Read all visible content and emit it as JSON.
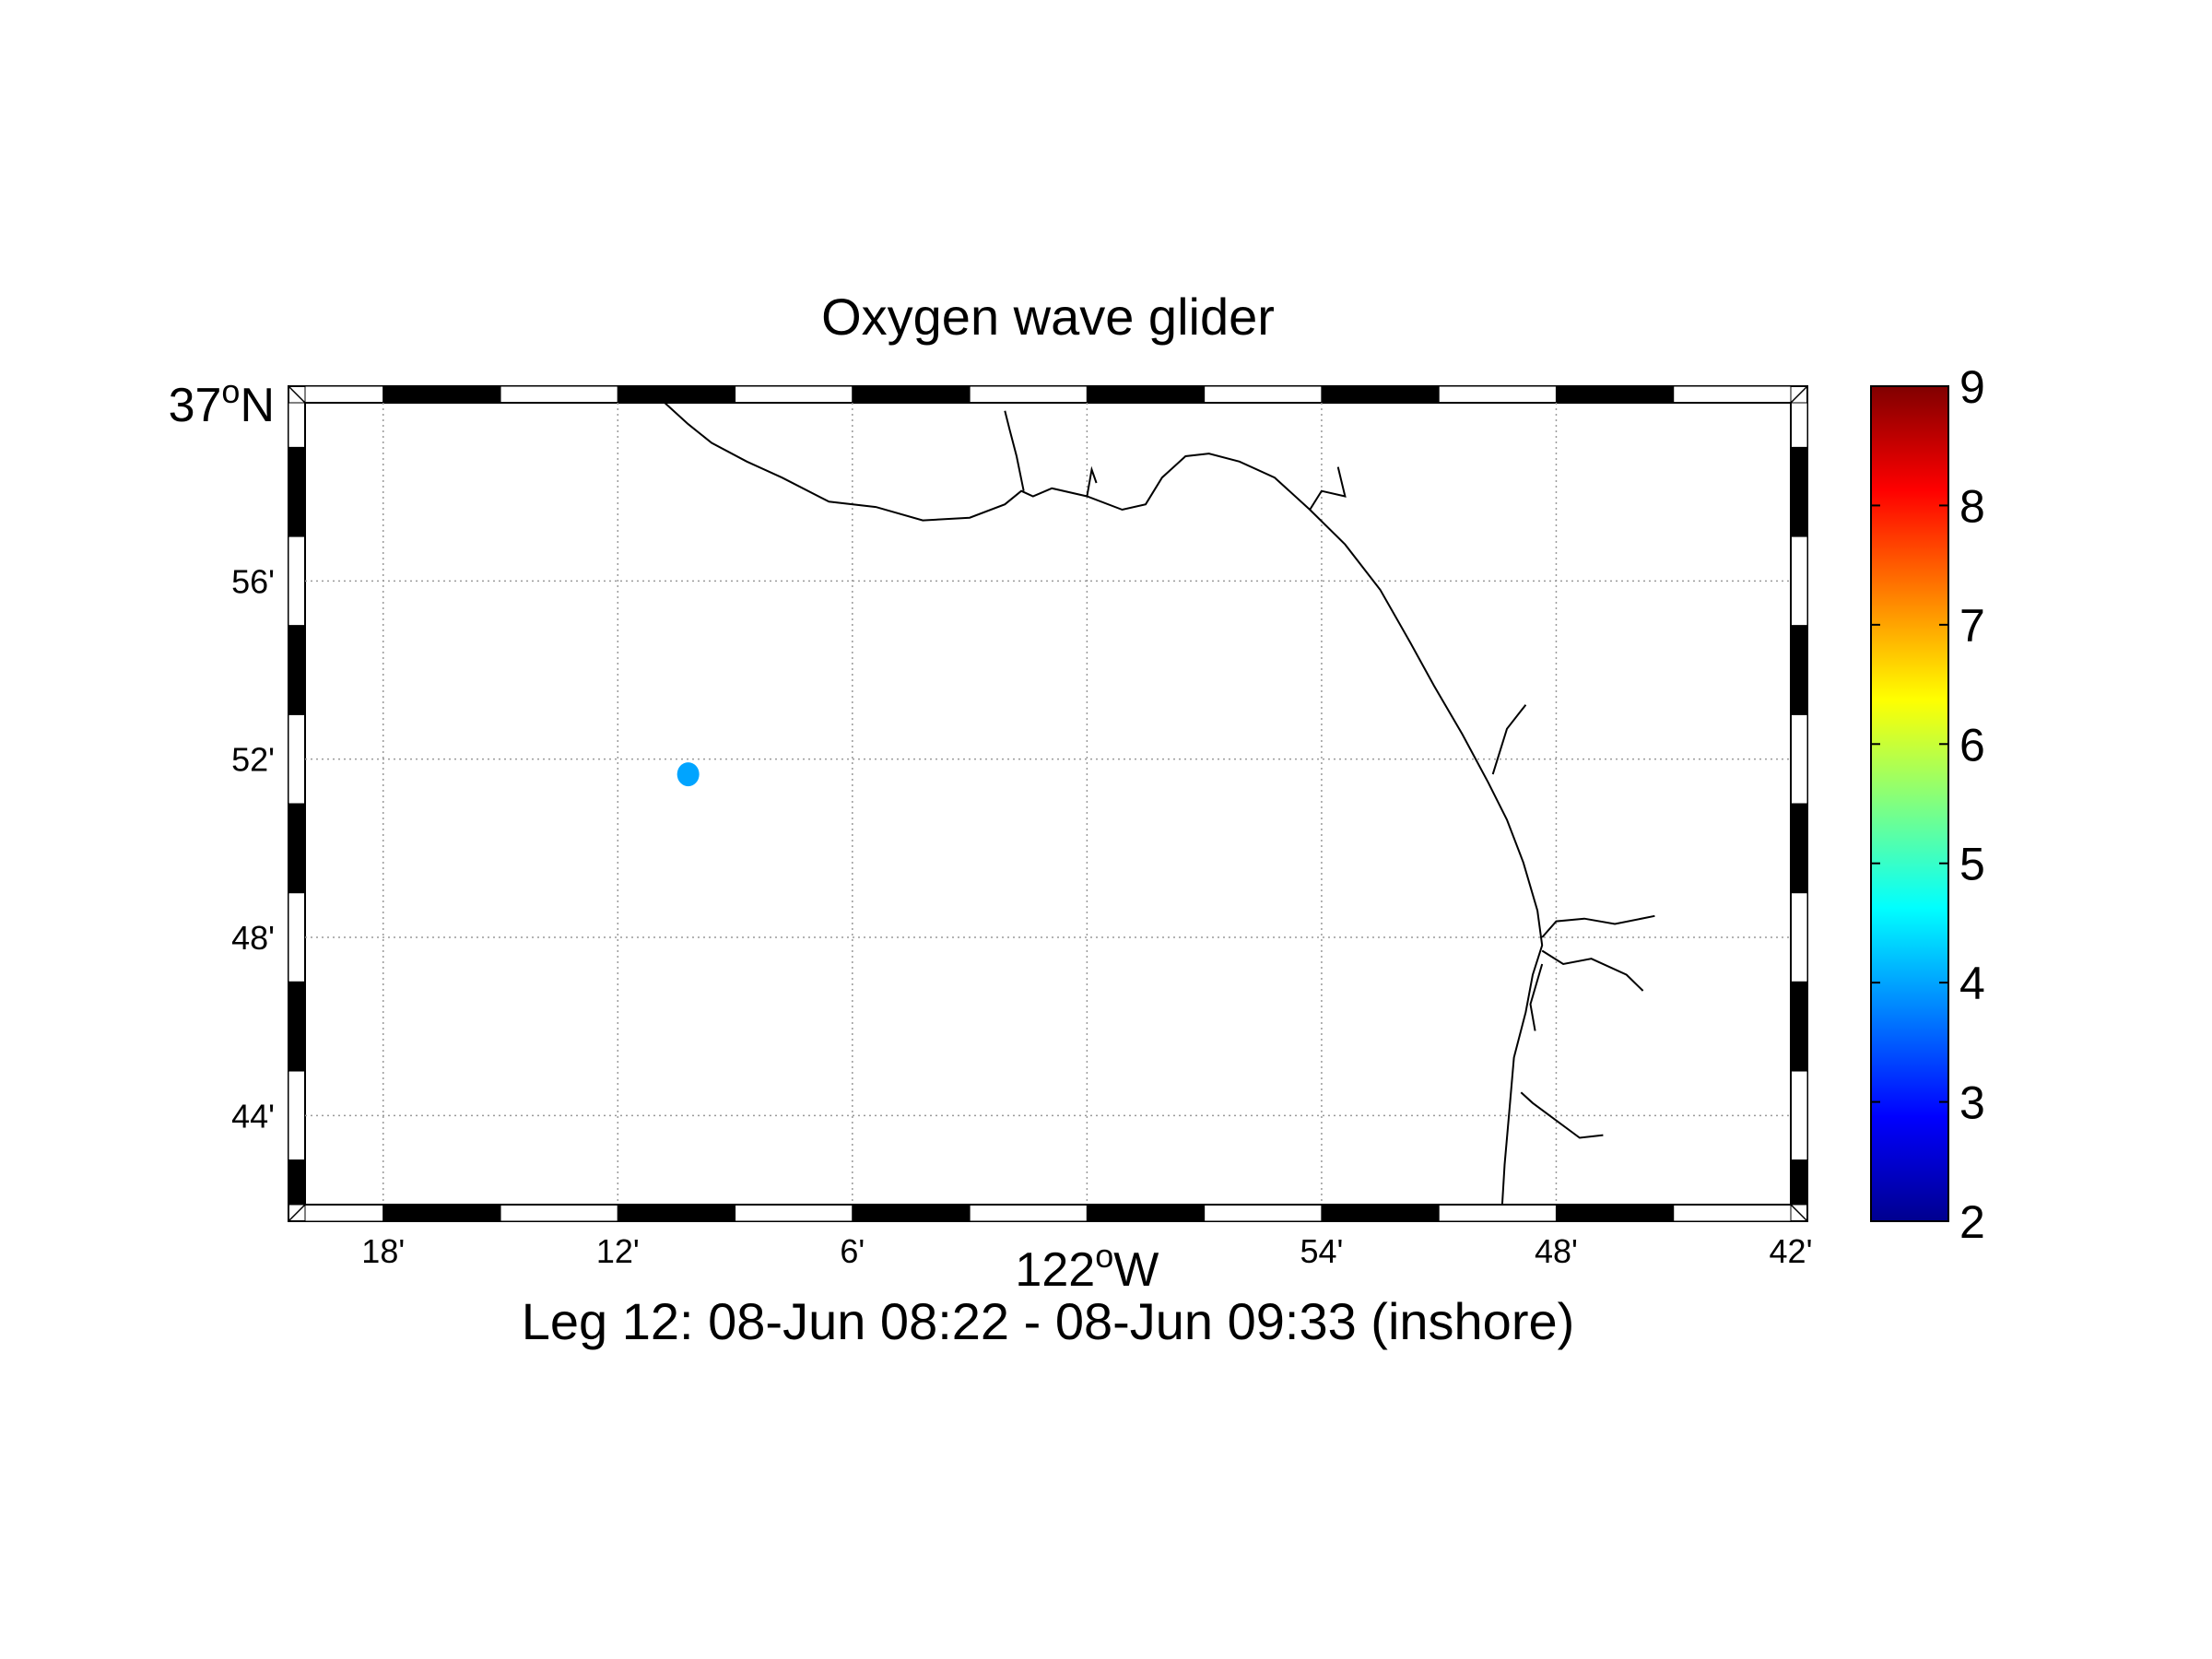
{
  "title": "Oxygen wave glider",
  "subtitle": "Leg 12: 08-Jun 08:22 - 08-Jun 09:33 (inshore)",
  "map": {
    "projection": "mercator",
    "lon_range": [
      -122.3333,
      -121.7
    ],
    "lat_range": [
      36.7,
      37.0
    ],
    "grid": true,
    "frame_style": "black-white checker border",
    "y_ticks": [
      {
        "lat": 37.0,
        "label": "37",
        "deg": "o",
        "hemi": "N"
      },
      {
        "lat": 36.9333,
        "label": "56'"
      },
      {
        "lat": 36.8667,
        "label": "52'"
      },
      {
        "lat": 36.8,
        "label": "48'"
      },
      {
        "lat": 36.7333,
        "label": "44'"
      }
    ],
    "x_ticks": [
      {
        "lon": -122.3,
        "label": "18'"
      },
      {
        "lon": -122.2,
        "label": "12'"
      },
      {
        "lon": -122.1,
        "label": "6'"
      },
      {
        "lon": -122.0,
        "label": "122",
        "deg": "o",
        "hemi": "W"
      },
      {
        "lon": -121.9,
        "label": "54'"
      },
      {
        "lon": -121.8,
        "label": "48'"
      },
      {
        "lon": -121.7,
        "label": "42'"
      }
    ],
    "coastline": [
      [
        -122.18,
        37.0
      ],
      [
        -122.17,
        36.992
      ],
      [
        -122.16,
        36.985
      ],
      [
        -122.145,
        36.978
      ],
      [
        -122.13,
        36.972
      ],
      [
        -122.11,
        36.963
      ],
      [
        -122.09,
        36.961
      ],
      [
        -122.07,
        36.956
      ],
      [
        -122.05,
        36.957
      ],
      [
        -122.035,
        36.962
      ],
      [
        -122.028,
        36.967
      ],
      [
        -122.023,
        36.965
      ],
      [
        -122.015,
        36.968
      ],
      [
        -122.0,
        36.965
      ],
      [
        -121.985,
        36.96
      ],
      [
        -121.975,
        36.962
      ],
      [
        -121.968,
        36.972
      ],
      [
        -121.958,
        36.98
      ],
      [
        -121.948,
        36.981
      ],
      [
        -121.935,
        36.978
      ],
      [
        -121.92,
        36.972
      ],
      [
        -121.905,
        36.96
      ],
      [
        -121.89,
        36.947
      ],
      [
        -121.875,
        36.93
      ],
      [
        -121.862,
        36.91
      ],
      [
        -121.852,
        36.894
      ],
      [
        -121.84,
        36.876
      ],
      [
        -121.829,
        36.858
      ],
      [
        -121.821,
        36.844
      ],
      [
        -121.814,
        36.828
      ],
      [
        -121.808,
        36.81
      ],
      [
        -121.806,
        36.797
      ],
      [
        -121.81,
        36.786
      ],
      [
        -121.813,
        36.772
      ],
      [
        -121.818,
        36.755
      ],
      [
        -121.82,
        36.735
      ],
      [
        -121.822,
        36.715
      ],
      [
        -121.823,
        36.7
      ]
    ],
    "rivers": [
      [
        [
          -122.027,
          36.967
        ],
        [
          -122.03,
          36.98
        ],
        [
          -122.033,
          36.99
        ],
        [
          -122.035,
          36.997
        ]
      ],
      [
        [
          -122.0,
          36.965
        ],
        [
          -121.998,
          36.975
        ],
        [
          -121.996,
          36.97
        ]
      ],
      [
        [
          -121.905,
          36.96
        ],
        [
          -121.9,
          36.967
        ],
        [
          -121.89,
          36.965
        ],
        [
          -121.893,
          36.976
        ]
      ],
      [
        [
          -121.827,
          36.861
        ],
        [
          -121.821,
          36.878
        ],
        [
          -121.813,
          36.887
        ]
      ],
      [
        [
          -121.806,
          36.8
        ],
        [
          -121.8,
          36.806
        ],
        [
          -121.788,
          36.807
        ],
        [
          -121.775,
          36.805
        ],
        [
          -121.758,
          36.808
        ]
      ],
      [
        [
          -121.806,
          36.795
        ],
        [
          -121.797,
          36.79
        ],
        [
          -121.785,
          36.792
        ],
        [
          -121.77,
          36.786
        ],
        [
          -121.763,
          36.78
        ]
      ],
      [
        [
          -121.806,
          36.79
        ],
        [
          -121.811,
          36.775
        ],
        [
          -121.809,
          36.765
        ]
      ],
      [
        [
          -121.815,
          36.742
        ],
        [
          -121.81,
          36.738
        ],
        [
          -121.79,
          36.725
        ],
        [
          -121.78,
          36.726
        ]
      ]
    ]
  },
  "observations": [
    {
      "lon": -122.17,
      "lat": 36.861,
      "oxygen": 4.0
    }
  ],
  "colorbar": {
    "min": 2,
    "max": 9,
    "ticks": [
      "2",
      "3",
      "4",
      "5",
      "6",
      "7",
      "8",
      "9"
    ],
    "colormap": "jet",
    "colors": [
      "#00008f",
      "#0000ff",
      "#0080ff",
      "#00ffff",
      "#80ff80",
      "#ffff00",
      "#ff8000",
      "#ff0000",
      "#800000"
    ]
  }
}
